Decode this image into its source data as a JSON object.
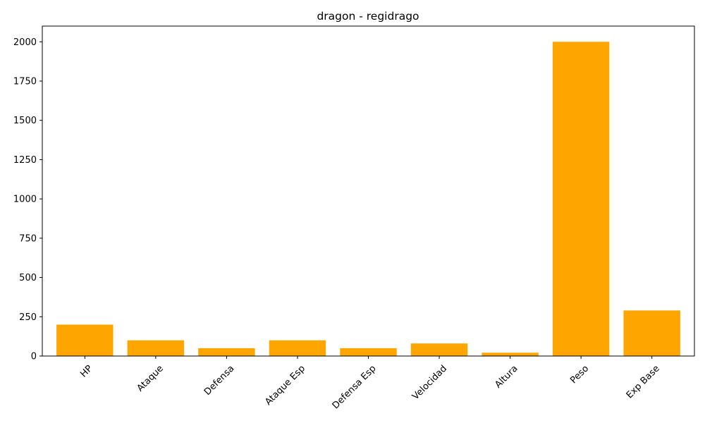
{
  "chart_data": {
    "type": "bar",
    "title": "dragon - regidrago",
    "xlabel": "",
    "ylabel": "",
    "categories": [
      "HP",
      "Ataque",
      "Defensa",
      "Ataque Esp",
      "Defensa Esp",
      "Velocidad",
      "Altura",
      "Peso",
      "Exp Base"
    ],
    "values": [
      200,
      100,
      50,
      100,
      50,
      80,
      21,
      2000,
      290
    ],
    "ylim": [
      0,
      2100
    ],
    "yticks": [
      0,
      250,
      500,
      750,
      1000,
      1250,
      1500,
      1750,
      2000
    ],
    "bar_color": "#ffa500",
    "grid": false,
    "legend": "none",
    "xtick_rotation": 45
  }
}
